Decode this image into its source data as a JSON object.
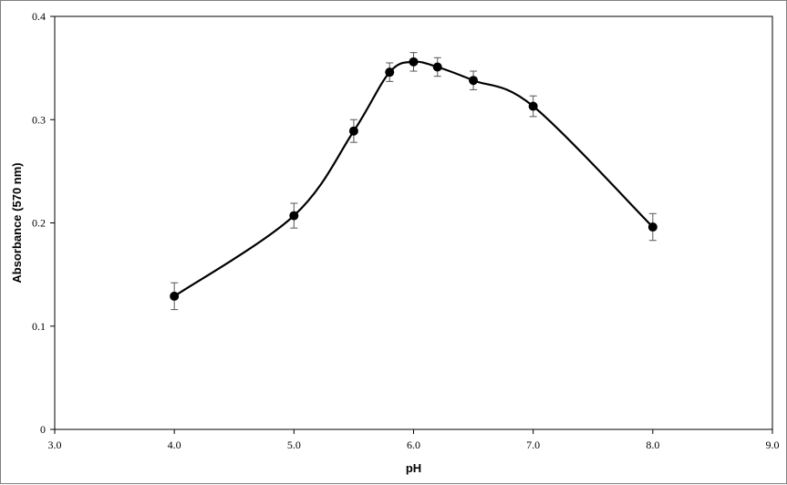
{
  "chart_data": {
    "type": "line",
    "title": "",
    "xlabel": "pH",
    "ylabel": "Absorbance (570 nm)",
    "xlim": [
      3.0,
      9.0
    ],
    "ylim": [
      0,
      0.4
    ],
    "x_ticks": [
      3.0,
      4.0,
      5.0,
      6.0,
      7.0,
      8.0,
      9.0
    ],
    "x_tick_labels": [
      "3.0",
      "4.0",
      "5.0",
      "6.0",
      "7.0",
      "8.0",
      "9.0"
    ],
    "y_ticks": [
      0,
      0.1,
      0.2,
      0.3,
      0.4
    ],
    "y_tick_labels": [
      "0",
      "0.1",
      "0.2",
      "0.3",
      "0.4"
    ],
    "grid": false,
    "legend": "none",
    "smooth": true,
    "colors": {
      "line": "#000000",
      "marker": "#000000",
      "error_bar": "#555555",
      "frame": "#7f7f7f"
    },
    "series": [
      {
        "x": [
          4.0,
          5.0,
          5.5,
          5.8,
          6.0,
          6.2,
          6.5,
          7.0,
          8.0
        ],
        "values": [
          0.129,
          0.207,
          0.289,
          0.346,
          0.356,
          0.351,
          0.338,
          0.313,
          0.196
        ],
        "error": [
          0.013,
          0.012,
          0.011,
          0.009,
          0.009,
          0.009,
          0.009,
          0.01,
          0.013
        ]
      }
    ]
  }
}
